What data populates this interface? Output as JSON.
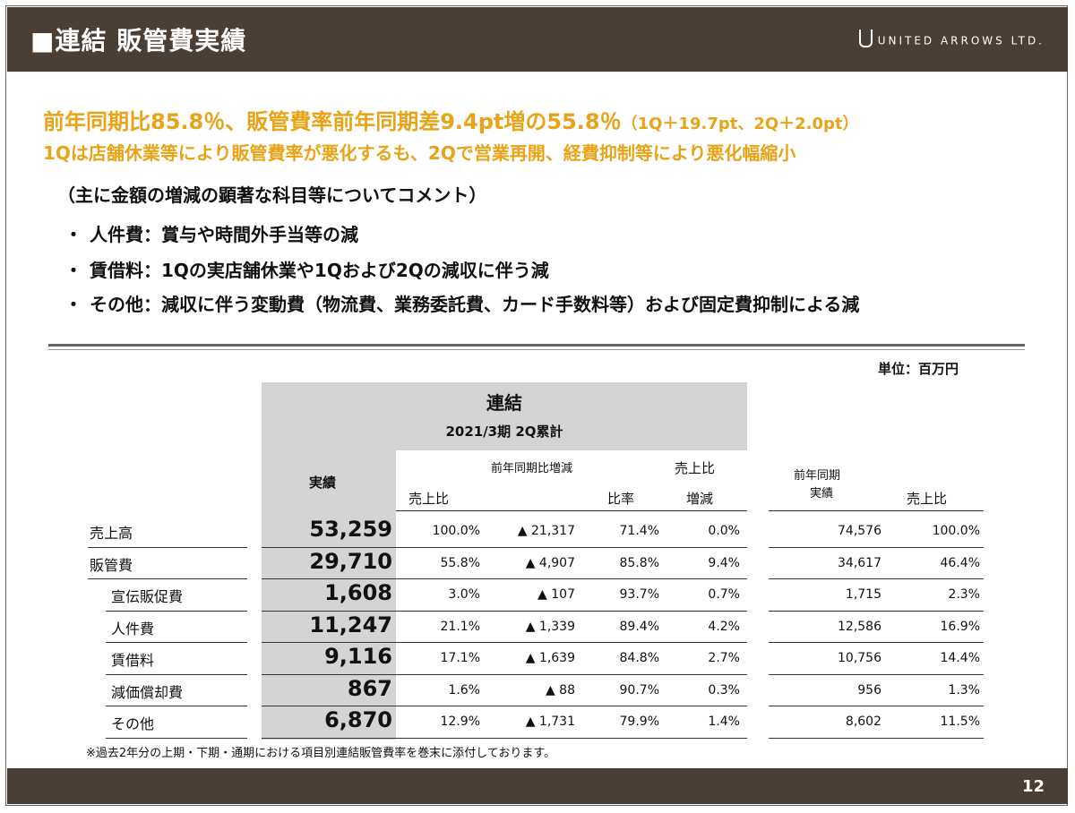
{
  "header": {
    "title": "■連結 販管費実績",
    "logo_text": "UNITED ARROWS LTD."
  },
  "headline": {
    "line1_main": "前年同期比85.8％、販管費率前年同期差9.4pt増の55.8％",
    "line1_paren": "（1Q＋19.7pt、2Q＋2.0pt）",
    "line2": "1Qは店舗休業等により販管費率が悪化するも、2Qで営業再開、経費抑制等により悪化幅縮小"
  },
  "comments": {
    "heading": "（主に金額の増減の顕著な科目等についてコメント）",
    "bullet_mark": "・",
    "items": [
      "人件費：賞与や時間外手当等の減",
      "賃借料：1Qの実店舗休業や1Qおよび2Qの減収に伴う減",
      "その他：減収に伴う変動費（物流費、業務委託費、カード手数料等）および固定費抑制による減"
    ]
  },
  "table": {
    "unit": "単位：百万円",
    "group_title": "連結",
    "period": "2021/3期 2Q累計",
    "headers": {
      "actual": "実績",
      "sales_ratio": "売上比",
      "yoy_change": "前年同期比増減",
      "ratio": "比率",
      "sales_ratio_change_top": "売上比",
      "sales_ratio_change_bottom": "増減",
      "prev_actual_top": "前年同期",
      "prev_actual_bottom": "実績",
      "prev_sales_ratio": "売上比"
    },
    "rows": [
      {
        "label": "売上高",
        "actual": "53,259",
        "ratio_sales": "100.0%",
        "change": "▲ 21,317",
        "rate": "71.4%",
        "diff": "0.0%",
        "prev": "74,576",
        "prev_ratio": "100.0%"
      },
      {
        "label": "販管費",
        "actual": "29,710",
        "ratio_sales": "55.8%",
        "change": "▲ 4,907",
        "rate": "85.8%",
        "diff": "9.4%",
        "prev": "34,617",
        "prev_ratio": "46.4%"
      },
      {
        "label": "宣伝販促費",
        "actual": "1,608",
        "ratio_sales": "3.0%",
        "change": "▲ 107",
        "rate": "93.7%",
        "diff": "0.7%",
        "prev": "1,715",
        "prev_ratio": "2.3%"
      },
      {
        "label": "人件費",
        "actual": "11,247",
        "ratio_sales": "21.1%",
        "change": "▲ 1,339",
        "rate": "89.4%",
        "diff": "4.2%",
        "prev": "12,586",
        "prev_ratio": "16.9%"
      },
      {
        "label": "賃借料",
        "actual": "9,116",
        "ratio_sales": "17.1%",
        "change": "▲ 1,639",
        "rate": "84.8%",
        "diff": "2.7%",
        "prev": "10,756",
        "prev_ratio": "14.4%"
      },
      {
        "label": "減価償却費",
        "actual": "867",
        "ratio_sales": "1.6%",
        "change": "▲ 88",
        "rate": "90.7%",
        "diff": "0.3%",
        "prev": "956",
        "prev_ratio": "1.3%"
      },
      {
        "label": "その他",
        "actual": "6,870",
        "ratio_sales": "12.9%",
        "change": "▲ 1,731",
        "rate": "79.9%",
        "diff": "1.4%",
        "prev": "8,602",
        "prev_ratio": "11.5%"
      }
    ]
  },
  "note": "※過去2年分の上期・下期・通期における項目別連結販管費率を巻末に添付しております。",
  "page_number": "12",
  "colors": {
    "header_bg": "#4a3f36",
    "accent": "#e8a317",
    "gray_cell": "#d4d4d4"
  }
}
